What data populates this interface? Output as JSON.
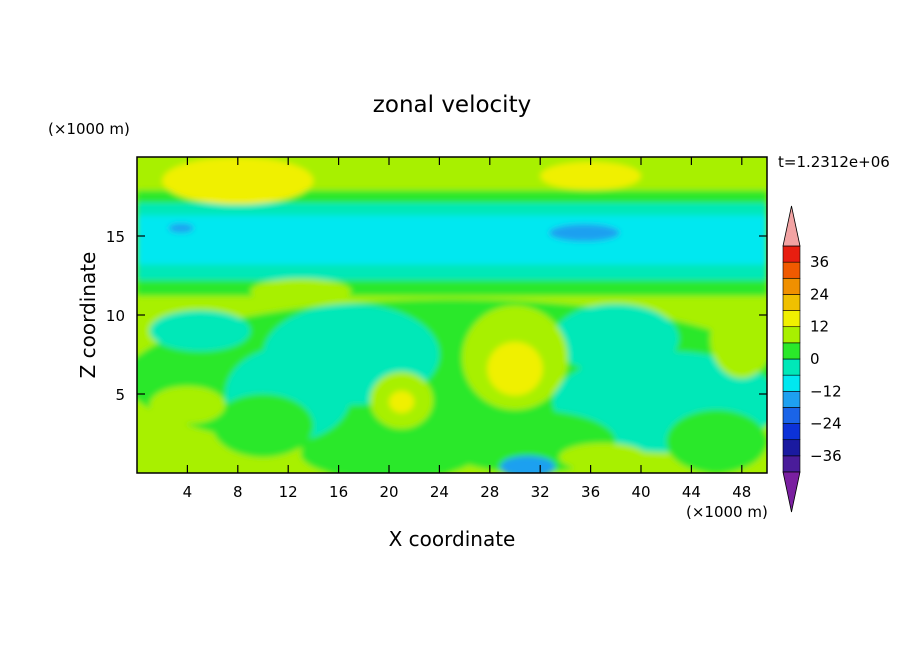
{
  "chart_data": {
    "type": "heatmap",
    "title": "zonal velocity",
    "xlabel": "X coordinate",
    "ylabel": "Z coordinate",
    "x_unit_label": "(×1000 m)",
    "y_unit_label": "(×1000 m)",
    "time_label": "t=1.2312e+06",
    "xlim": [
      0,
      50
    ],
    "ylim": [
      0,
      20
    ],
    "x_ticks": [
      "4",
      "8",
      "12",
      "16",
      "20",
      "24",
      "28",
      "32",
      "36",
      "40",
      "44",
      "48"
    ],
    "y_ticks": [
      "5",
      "10",
      "15"
    ],
    "colorbar": {
      "levels": [
        -42,
        -36,
        -30,
        -24,
        -18,
        -12,
        -6,
        0,
        6,
        12,
        18,
        24,
        30,
        36,
        42
      ],
      "tick_labels": [
        "36",
        "24",
        "12",
        "0",
        "−12",
        "−24",
        "−36"
      ],
      "colors": [
        "#7a1fa0",
        "#4a1c9a",
        "#1a1aa0",
        "#0c32d8",
        "#1a64e8",
        "#1ea0f0",
        "#00e8f0",
        "#00e8b8",
        "#2ae82a",
        "#a8f000",
        "#f0f000",
        "#f0c000",
        "#f09000",
        "#f05a00",
        "#e81e10",
        "#f2a3a3"
      ]
    },
    "grid": false,
    "description_of_field": "layered zonal velocity: near 0 to +12 at top, −6 to −12 band around z=13–17, mixed 0 to +12 patches below with local maxima ~+12 near x≈30,z≈7 and x≈21,z≈4.5"
  }
}
